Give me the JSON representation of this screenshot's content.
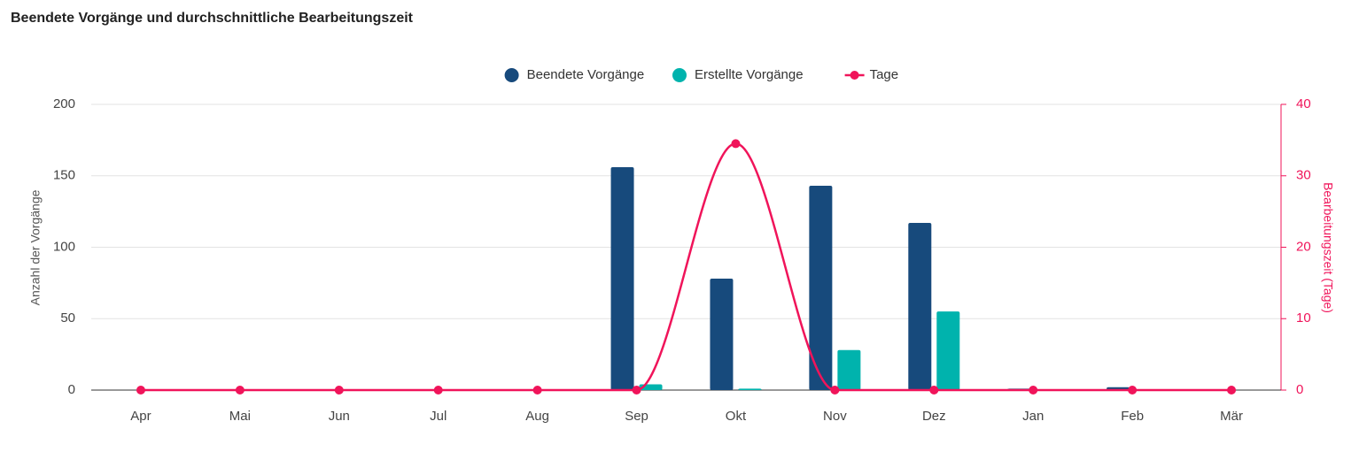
{
  "chart_data": {
    "type": "bar",
    "title": "Beendete Vorgänge und durchschnittliche Bearbeitungszeit",
    "y_label": "Anzahl der Vorgänge",
    "y2_label": "Bearbeitungszeit (Tage)",
    "categories": [
      "Apr",
      "Mai",
      "Jun",
      "Jul",
      "Aug",
      "Sep",
      "Okt",
      "Nov",
      "Dez",
      "Jan",
      "Feb",
      "Mär"
    ],
    "series": [
      {
        "name": "Beendete Vorgänge",
        "type": "bar",
        "color": "#174a7c",
        "values": [
          0,
          0,
          0,
          0,
          0,
          156,
          78,
          143,
          117,
          1,
          2,
          0
        ]
      },
      {
        "name": "Erstellte Vorgänge",
        "type": "bar",
        "color": "#00b3ad",
        "values": [
          0,
          0,
          0,
          0,
          0,
          4,
          1,
          28,
          55,
          0,
          0,
          0
        ]
      },
      {
        "name": "Tage",
        "type": "line",
        "axis": "y2",
        "color": "#f0145a",
        "values": [
          0,
          0,
          0,
          0,
          0,
          0,
          34.5,
          0,
          0,
          0,
          0,
          0
        ]
      }
    ],
    "ylim": [
      0,
      200
    ],
    "yticks": [
      0,
      50,
      100,
      150,
      200
    ],
    "y2lim": [
      0,
      40
    ],
    "y2ticks": [
      0,
      10,
      20,
      30,
      40
    ],
    "grid": true,
    "legend": "top"
  }
}
